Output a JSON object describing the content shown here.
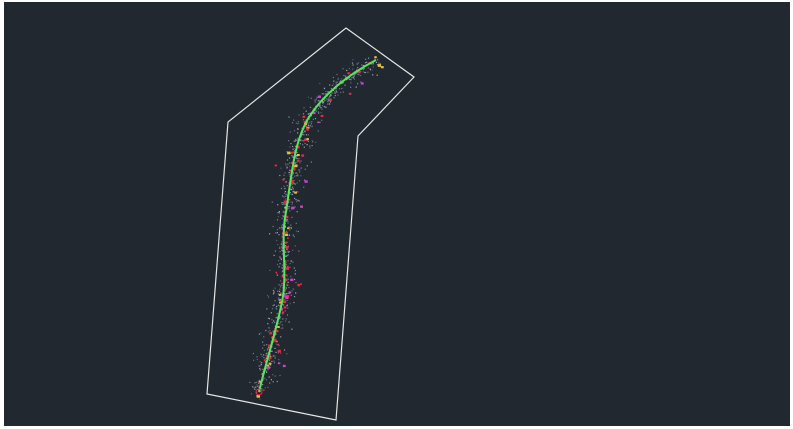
{
  "viewport": {
    "background_color": "#212830",
    "boundary_color": "#e6e6e6",
    "centerline_color": "#5ae65a",
    "point_colors": {
      "ground": "#aab0c6",
      "ground_alt": "#7f86a3",
      "highlight_red": "#ff2040",
      "highlight_yellow": "#e8c040",
      "highlight_magenta": "#d040d0"
    }
  }
}
